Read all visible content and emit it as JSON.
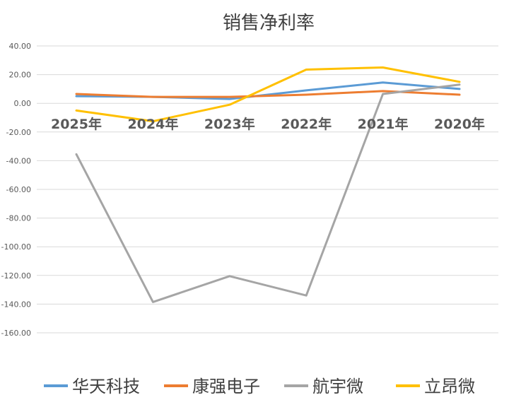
{
  "chart_data": {
    "type": "line",
    "title": "销售净利率",
    "categories": [
      "2025年",
      "2024年",
      "2023年",
      "2022年",
      "2021年",
      "2020年"
    ],
    "ylim": [
      -160,
      40
    ],
    "yticks": [
      "40.00",
      "20.00",
      "0.00",
      "-20.00",
      "-40.00",
      "-60.00",
      "-80.00",
      "-100.00",
      "-120.00",
      "-140.00",
      "-160.00"
    ],
    "grid": true,
    "legend_position": "bottom",
    "series": [
      {
        "name": "华天科技",
        "color": "#5B9BD5",
        "values": [
          5.0,
          4.5,
          3.0,
          9.0,
          14.5,
          10.0
        ]
      },
      {
        "name": "康强电子",
        "color": "#ED7D31",
        "values": [
          6.5,
          4.5,
          4.5,
          6.0,
          8.5,
          6.0
        ]
      },
      {
        "name": "航宇微",
        "color": "#A5A5A5",
        "values": [
          -35.5,
          -138.5,
          -120.5,
          -134.0,
          6.5,
          13.0
        ]
      },
      {
        "name": "立昂微",
        "color": "#FFC000",
        "values": [
          -5.0,
          -12.5,
          -1.0,
          23.5,
          25.0,
          15.0
        ]
      }
    ]
  }
}
